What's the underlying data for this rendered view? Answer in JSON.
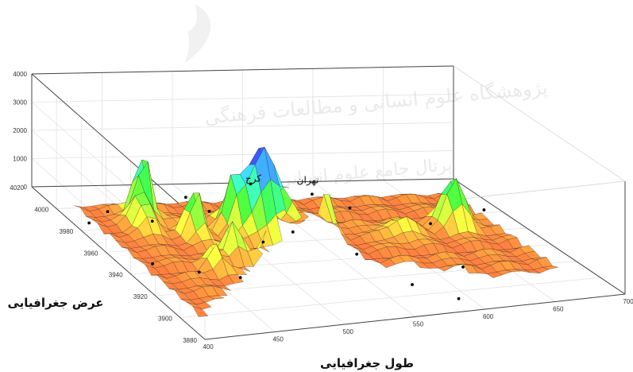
{
  "chart_data": {
    "type": "surface",
    "title": "",
    "xlabel": "طول جغرافیایی",
    "ylabel": "عرض جغرافیایی",
    "zlabel": "",
    "x_ticks": [
      400,
      450,
      500,
      550,
      600,
      650,
      700
    ],
    "y_ticks": [
      3880,
      3900,
      3920,
      3940,
      3960,
      3980,
      4000,
      4020
    ],
    "z_ticks": [
      0,
      1000,
      2000,
      3000,
      4000
    ],
    "xlim": [
      400,
      700
    ],
    "ylim": [
      3880,
      4020
    ],
    "zlim": [
      0,
      4000
    ],
    "grid": true,
    "colormap": "hsv",
    "annotations": [
      {
        "label": "تهران",
        "x": 535,
        "y": 3950,
        "z": 1500
      },
      {
        "label": "کرج",
        "x": 505,
        "y": 3960,
        "z": 1300
      }
    ],
    "observed_stations": [
      {
        "x": 410,
        "y": 3985,
        "z": 50
      },
      {
        "x": 432,
        "y": 3995,
        "z": 30
      },
      {
        "x": 455,
        "y": 3985,
        "z": 20
      },
      {
        "x": 470,
        "y": 3975,
        "z": 1200
      },
      {
        "x": 500,
        "y": 3990,
        "z": 100
      },
      {
        "x": 525,
        "y": 3985,
        "z": 1200
      },
      {
        "x": 560,
        "y": 3975,
        "z": 1100
      },
      {
        "x": 600,
        "y": 3990,
        "z": 30
      },
      {
        "x": 640,
        "y": 3970,
        "z": 20
      },
      {
        "x": 665,
        "y": 3955,
        "z": 900
      },
      {
        "x": 420,
        "y": 3945,
        "z": 100
      },
      {
        "x": 440,
        "y": 3930,
        "z": 300
      },
      {
        "x": 465,
        "y": 3925,
        "z": 200
      },
      {
        "x": 490,
        "y": 3935,
        "z": 1000
      },
      {
        "x": 520,
        "y": 3945,
        "z": 900
      },
      {
        "x": 548,
        "y": 3925,
        "z": 700
      },
      {
        "x": 570,
        "y": 3905,
        "z": 200
      },
      {
        "x": 590,
        "y": 3890,
        "z": 100
      },
      {
        "x": 615,
        "y": 3915,
        "z": 300
      }
    ]
  },
  "watermark": {
    "line1": "پژوهشگاه علوم انسانی و مطالعات فرهنگی",
    "line2": "پرتال جامع علوم انسانی"
  }
}
